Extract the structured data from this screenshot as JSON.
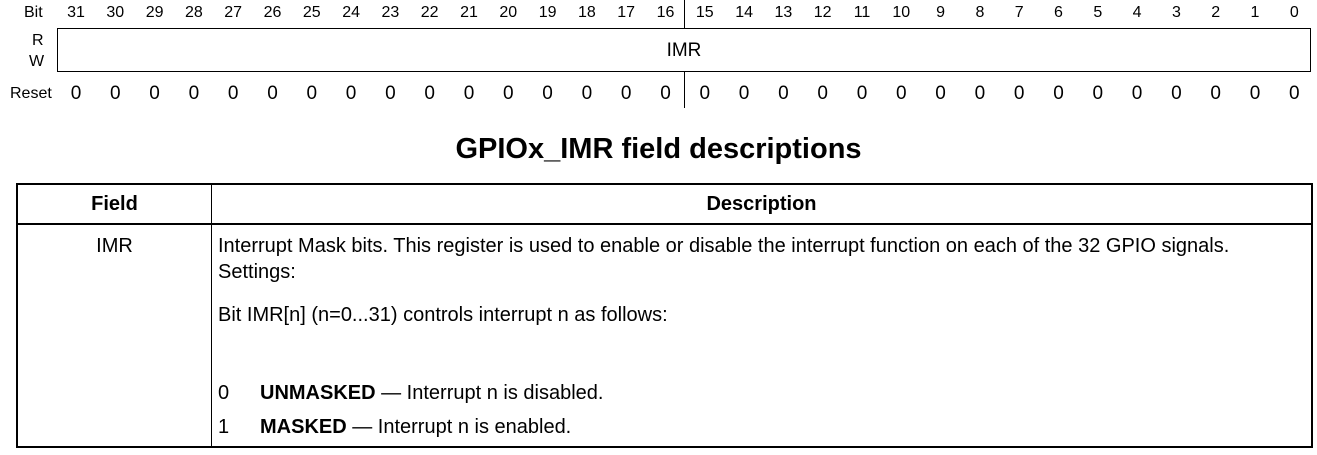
{
  "register": {
    "bit_label": "Bit",
    "r_label": "R",
    "w_label": "W",
    "reset_label": "Reset",
    "field_name": "IMR",
    "bits": [
      "31",
      "30",
      "29",
      "28",
      "27",
      "26",
      "25",
      "24",
      "23",
      "22",
      "21",
      "20",
      "19",
      "18",
      "17",
      "16",
      "15",
      "14",
      "13",
      "12",
      "11",
      "10",
      "9",
      "8",
      "7",
      "6",
      "5",
      "4",
      "3",
      "2",
      "1",
      "0"
    ],
    "reset_values": [
      "0",
      "0",
      "0",
      "0",
      "0",
      "0",
      "0",
      "0",
      "0",
      "0",
      "0",
      "0",
      "0",
      "0",
      "0",
      "0",
      "0",
      "0",
      "0",
      "0",
      "0",
      "0",
      "0",
      "0",
      "0",
      "0",
      "0",
      "0",
      "0",
      "0",
      "0",
      "0"
    ]
  },
  "table": {
    "title": "GPIOx_IMR field descriptions",
    "header_field": "Field",
    "header_description": "Description",
    "row": {
      "field": "IMR",
      "description": "Interrupt Mask bits. This register is used to enable or disable the interrupt function on each of the 32 GPIO signals.",
      "settings": "Settings:",
      "bit_line": "Bit IMR[n] (n=0...31) controls interrupt n as follows:",
      "enums": [
        {
          "value": "0",
          "name": "UNMASKED",
          "text": " — Interrupt n is disabled."
        },
        {
          "value": "1",
          "name": "MASKED",
          "text": " — Interrupt n is enabled."
        }
      ]
    }
  }
}
